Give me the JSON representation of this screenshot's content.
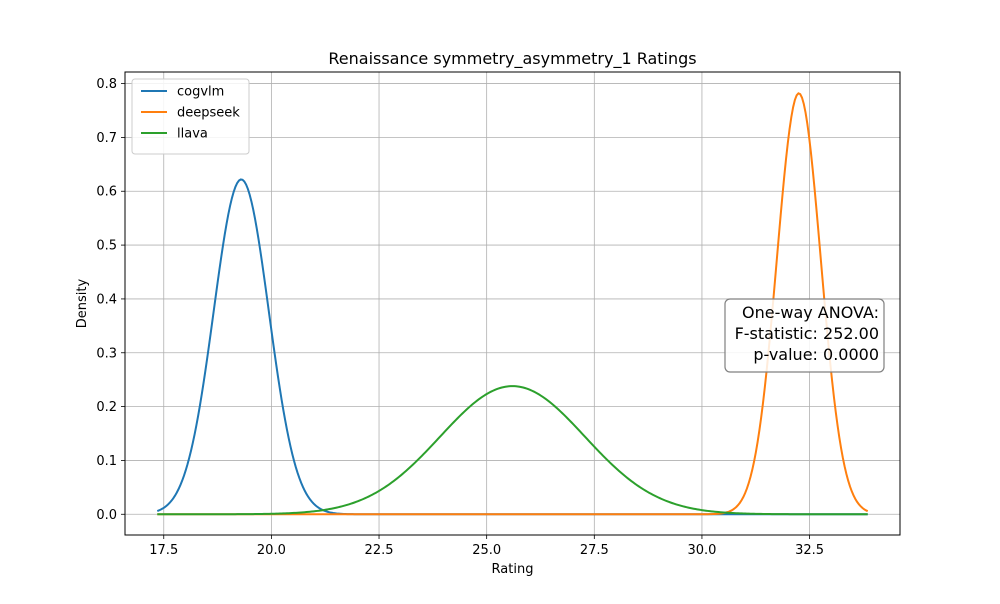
{
  "chart_data": {
    "type": "line",
    "title": "Renaissance symmetry_asymmetry_1 Ratings",
    "xlabel": "Rating",
    "ylabel": "Density",
    "xlim": [
      16.6,
      34.6
    ],
    "ylim": [
      -0.0385,
      0.8215
    ],
    "xticks": [
      17.5,
      20.0,
      22.5,
      25.0,
      27.5,
      30.0,
      32.5
    ],
    "xtick_labels": [
      "17.5",
      "20.0",
      "22.5",
      "25.0",
      "27.5",
      "30.0",
      "32.5"
    ],
    "yticks": [
      0.0,
      0.1,
      0.2,
      0.3,
      0.4,
      0.5,
      0.6,
      0.7,
      0.8
    ],
    "ytick_labels": [
      "0.0",
      "0.1",
      "0.2",
      "0.3",
      "0.4",
      "0.5",
      "0.6",
      "0.7",
      "0.8"
    ],
    "grid": true,
    "legend_position": "top-left",
    "series": [
      {
        "name": "cogvlm",
        "color": "#1f77b4",
        "distribution": "gaussian-kde",
        "mean": 19.3,
        "sd": 0.64,
        "peak_density": 0.622,
        "x_range": [
          17.35,
          33.85
        ]
      },
      {
        "name": "deepseek",
        "color": "#ff7f0e",
        "distribution": "gaussian-kde",
        "mean": 32.25,
        "sd": 0.51,
        "peak_density": 0.782,
        "x_range": [
          17.35,
          33.85
        ]
      },
      {
        "name": "llava",
        "color": "#2ca02c",
        "distribution": "gaussian-kde",
        "mean": 25.6,
        "sd": 1.68,
        "peak_density": 0.238,
        "x_range": [
          17.35,
          33.85
        ]
      }
    ],
    "annotation": {
      "lines": [
        "One-way ANOVA:",
        "F-statistic: 252.00",
        "p-value: 0.0000"
      ],
      "position": "right-middle"
    }
  }
}
